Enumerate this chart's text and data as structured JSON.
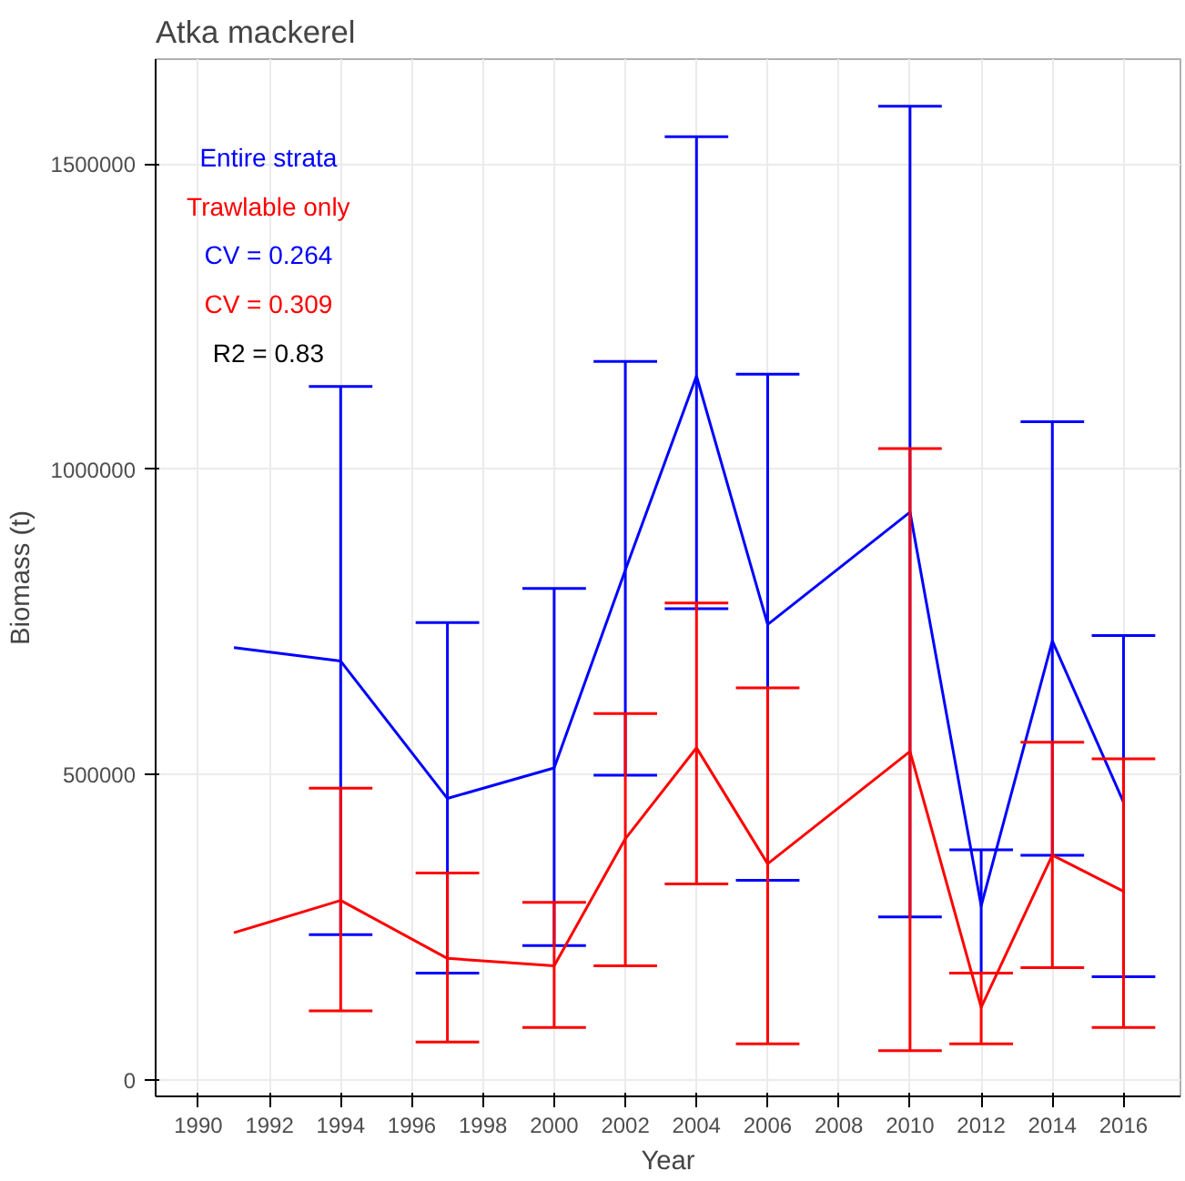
{
  "chart_data": {
    "type": "line",
    "title": "Atka mackerel",
    "xlabel": "Year",
    "ylabel": "Biomass (t)",
    "x": [
      1991,
      1994,
      1997,
      2000,
      2002,
      2004,
      2006,
      2010,
      2012,
      2014,
      2016
    ],
    "series": [
      {
        "name": "Entire strata",
        "color": "#0000ff",
        "values": [
          708000,
          686000,
          461000,
          511000,
          835000,
          1153000,
          746000,
          930000,
          285000,
          719000,
          455000
        ],
        "errors": [
          null,
          [
            238000,
            1136000
          ],
          [
            175000,
            749000
          ],
          [
            220000,
            805000
          ],
          [
            499000,
            1177000
          ],
          [
            772000,
            1545000
          ],
          [
            327000,
            1156000
          ],
          [
            267000,
            1595000
          ],
          [
            175000,
            377000
          ],
          [
            368000,
            1078000
          ],
          [
            169000,
            728000
          ]
        ]
      },
      {
        "name": "Trawlable only",
        "color": "#ff0000",
        "values": [
          241000,
          294000,
          199000,
          187000,
          395000,
          544000,
          354000,
          538000,
          119000,
          368000,
          309000
        ],
        "errors": [
          null,
          [
            113000,
            478000
          ],
          [
            62000,
            339000
          ],
          [
            86000,
            291000
          ],
          [
            187000,
            600000
          ],
          [
            321000,
            781000
          ],
          [
            59000,
            642000
          ],
          [
            48000,
            1034000
          ],
          [
            59000,
            175000
          ],
          [
            184000,
            553000
          ],
          [
            86000,
            526000
          ]
        ]
      }
    ],
    "annotations": [
      "CV = 0.264",
      "CV = 0.309",
      "R2 = 0.83"
    ],
    "xlim": [
      1988.8,
      2017.6
    ],
    "ylim": [
      -27000,
      1672000
    ],
    "xticks": [
      1990,
      1992,
      1994,
      1996,
      1998,
      2000,
      2002,
      2004,
      2006,
      2008,
      2010,
      2012,
      2014,
      2016
    ],
    "yticks": [
      0,
      500000,
      1000000,
      1500000
    ],
    "grid": true,
    "legend": "top left",
    "marker": "none",
    "line_style": "solid"
  }
}
